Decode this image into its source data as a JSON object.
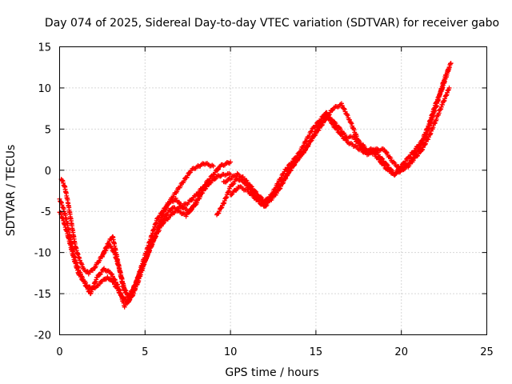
{
  "chart_data": {
    "type": "scatter",
    "title": "Day 074 of 2025, Sidereal Day-to-day VTEC variation (SDTVAR) for receiver gabo",
    "xlabel": "GPS time / hours",
    "ylabel": "SDTVAR / TECUs",
    "xlim": [
      0,
      25
    ],
    "ylim": [
      -20,
      15
    ],
    "xticks": [
      0,
      5,
      10,
      15,
      20,
      25
    ],
    "yticks": [
      -20,
      -15,
      -10,
      -5,
      0,
      5,
      10,
      15
    ],
    "grid": true,
    "marker": "+",
    "series_color": "#ff0000",
    "series": [
      {
        "x": [
          0.0,
          0.2,
          0.4,
          0.6,
          0.8,
          1.0,
          1.3,
          1.6,
          1.9,
          2.2,
          2.5,
          2.8,
          3.1,
          3.4,
          3.7,
          4.0,
          4.3,
          4.7,
          5.1,
          5.5,
          6.0,
          6.5,
          7.0,
          7.5,
          8.0,
          8.4,
          8.8
        ],
        "y": [
          -3.5,
          -4.5,
          -6.0,
          -8.0,
          -10.0,
          -11.5,
          -13.0,
          -14.0,
          -14.5,
          -14.0,
          -13.5,
          -13.0,
          -13.5,
          -14.5,
          -15.5,
          -16.0,
          -15.0,
          -12.5,
          -10.5,
          -8.5,
          -6.5,
          -5.5,
          -4.5,
          -4.0,
          -3.0,
          -2.0,
          -1.5
        ]
      },
      {
        "x": [
          0.1,
          0.3,
          0.5,
          0.7,
          0.9,
          1.1,
          1.4,
          1.7,
          2.0,
          2.3,
          2.6,
          2.9,
          3.2,
          3.5,
          3.8,
          4.1,
          4.5,
          4.9,
          5.3,
          5.7,
          6.2,
          6.7,
          7.2,
          7.7,
          8.1,
          8.5,
          9.0
        ],
        "y": [
          -1.0,
          -2.0,
          -4.0,
          -6.5,
          -9.0,
          -10.5,
          -12.0,
          -12.5,
          -12.0,
          -11.0,
          -10.0,
          -9.0,
          -10.0,
          -12.0,
          -14.5,
          -15.5,
          -13.5,
          -11.0,
          -8.5,
          -6.0,
          -4.5,
          -3.0,
          -1.5,
          0.0,
          0.5,
          0.8,
          0.5
        ]
      },
      {
        "x": [
          0.0,
          0.2,
          0.5,
          0.8,
          1.1,
          1.4,
          1.8,
          2.2,
          2.6,
          3.0,
          3.4,
          3.8,
          4.2,
          4.6,
          5.0,
          5.4,
          5.8,
          6.2,
          6.6,
          7.0,
          7.4,
          7.8,
          8.2,
          8.6,
          9.0,
          9.4,
          10.0
        ],
        "y": [
          -5.0,
          -6.0,
          -8.0,
          -10.5,
          -12.5,
          -13.5,
          -15.0,
          -13.0,
          -12.0,
          -12.5,
          -14.0,
          -16.5,
          -15.5,
          -13.5,
          -11.0,
          -9.0,
          -7.0,
          -5.5,
          -4.5,
          -5.0,
          -5.5,
          -4.5,
          -3.0,
          -1.5,
          -0.5,
          0.5,
          1.0
        ]
      },
      {
        "x": [
          2.5,
          2.8,
          3.1,
          3.4,
          3.7,
          4.0,
          4.4,
          4.8,
          5.2,
          5.6,
          6.0,
          6.4,
          6.8,
          7.2,
          7.6,
          8.0,
          8.4,
          8.8,
          9.2,
          9.6,
          10.0
        ],
        "y": [
          -10.5,
          -9.0,
          -8.0,
          -11.0,
          -14.0,
          -15.5,
          -14.0,
          -12.0,
          -10.0,
          -8.0,
          -5.5,
          -4.0,
          -3.5,
          -4.5,
          -5.0,
          -4.0,
          -2.5,
          -1.5,
          -0.8,
          -0.5,
          -0.5
        ]
      },
      {
        "x": [
          9.2,
          9.6,
          10.0,
          10.4,
          10.8,
          11.2,
          11.6,
          12.0,
          12.4,
          12.8,
          13.2,
          13.6,
          14.0,
          14.4,
          14.8,
          15.2,
          15.6,
          16.0,
          16.4,
          16.8,
          17.2,
          17.6,
          18.0,
          18.4,
          18.8,
          19.2,
          19.6,
          20.0,
          20.4,
          20.8,
          21.2,
          21.6,
          22.0,
          22.4,
          22.8
        ],
        "y": [
          -5.5,
          -4.0,
          -2.0,
          -1.0,
          -1.5,
          -2.5,
          -3.5,
          -4.0,
          -3.5,
          -2.5,
          -1.0,
          0.5,
          1.5,
          2.5,
          4.0,
          5.5,
          6.5,
          6.0,
          5.0,
          4.0,
          4.0,
          3.0,
          2.0,
          2.5,
          1.5,
          0.5,
          -0.5,
          0.0,
          0.5,
          1.5,
          2.5,
          4.0,
          6.0,
          8.0,
          10.0
        ]
      },
      {
        "x": [
          9.6,
          10.0,
          10.4,
          10.8,
          11.2,
          11.6,
          12.0,
          12.4,
          12.8,
          13.2,
          13.6,
          14.0,
          14.4,
          14.8,
          15.2,
          15.6,
          16.0,
          16.4,
          16.8,
          17.2,
          17.6,
          18.0,
          18.4,
          18.8,
          19.2,
          19.6,
          20.0,
          20.4,
          20.8,
          21.2,
          21.6,
          22.0,
          22.4,
          22.8
        ],
        "y": [
          -1.5,
          -1.0,
          -0.5,
          -1.0,
          -2.0,
          -3.0,
          -3.8,
          -3.0,
          -1.5,
          0.0,
          1.0,
          2.0,
          3.5,
          5.0,
          6.0,
          7.0,
          5.5,
          4.5,
          3.5,
          3.0,
          2.5,
          2.0,
          2.0,
          1.0,
          0.0,
          -0.5,
          0.5,
          1.5,
          2.5,
          3.5,
          5.5,
          8.0,
          10.0,
          12.5
        ]
      },
      {
        "x": [
          10.0,
          10.5,
          11.0,
          11.5,
          12.0,
          12.5,
          13.0,
          13.5,
          14.0,
          14.5,
          15.0,
          15.5,
          16.0,
          16.5,
          17.0,
          17.5,
          18.0,
          18.5,
          19.0,
          19.5,
          20.0,
          20.5,
          21.0,
          21.5,
          22.0,
          22.5,
          22.9
        ],
        "y": [
          -3.0,
          -2.0,
          -2.5,
          -3.5,
          -4.5,
          -3.0,
          -1.5,
          0.0,
          1.5,
          3.0,
          4.5,
          6.0,
          7.5,
          8.0,
          6.0,
          3.5,
          2.5,
          2.5,
          2.5,
          1.0,
          0.0,
          1.0,
          2.5,
          4.5,
          7.5,
          11.0,
          13.0
        ]
      }
    ]
  }
}
